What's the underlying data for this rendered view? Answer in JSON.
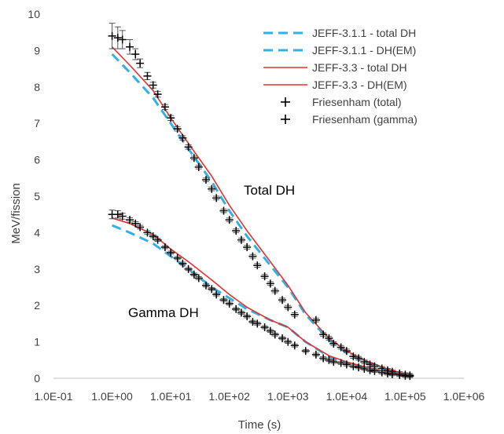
{
  "chart_data": {
    "type": "line",
    "xscale": "log",
    "xlabel": "Time (s)",
    "ylabel": "MeV/fission",
    "xlim": [
      0.1,
      1000000
    ],
    "ylim": [
      0,
      10
    ],
    "x_ticks": [
      "1.0E-01",
      "1.0E+00",
      "1.0E+01",
      "1.0E+02",
      "1.0E+03",
      "1.0E+04",
      "1.0E+05",
      "1.0E+06"
    ],
    "y_ticks": [
      "0",
      "1",
      "2",
      "3",
      "4",
      "5",
      "6",
      "7",
      "8",
      "9",
      "10"
    ],
    "grid": false,
    "legend_position": "top-right",
    "annotations": [
      "Total DH",
      "Gamma DH"
    ],
    "colors": {
      "jeff311": "#2EB2E8",
      "jeff33": "#E8302E",
      "markers": "#000000",
      "axis": "#bfbfbf",
      "text": "#404040"
    },
    "series": [
      {
        "name": "JEFF-3.1.1 - total DH",
        "style": "dashed",
        "x": [
          1,
          2,
          5,
          10,
          20,
          50,
          100,
          200,
          500,
          1000,
          2000,
          5000,
          10000,
          20000,
          50000,
          100000,
          130000
        ],
        "y": [
          8.9,
          8.4,
          7.7,
          7.0,
          6.3,
          5.4,
          4.6,
          3.9,
          3.1,
          2.5,
          1.75,
          1.05,
          0.7,
          0.45,
          0.22,
          0.1,
          0.08
        ]
      },
      {
        "name": "JEFF-3.1.1 - DH(EM)",
        "style": "dashed",
        "x": [
          1,
          2,
          5,
          10,
          20,
          50,
          100,
          200,
          500,
          1000,
          2000,
          5000,
          10000,
          20000,
          50000,
          100000,
          130000
        ],
        "y": [
          4.2,
          4.0,
          3.7,
          3.35,
          3.0,
          2.5,
          2.2,
          1.9,
          1.6,
          1.4,
          1.0,
          0.6,
          0.42,
          0.3,
          0.15,
          0.06,
          0.05
        ]
      },
      {
        "name": "JEFF-3.3 - total DH",
        "style": "solid",
        "x": [
          1,
          2,
          5,
          10,
          20,
          50,
          100,
          200,
          500,
          1000,
          2000,
          5000,
          10000,
          20000,
          50000,
          100000,
          130000
        ],
        "y": [
          9.1,
          8.6,
          7.9,
          7.15,
          6.45,
          5.55,
          4.75,
          4.05,
          3.2,
          2.55,
          1.8,
          1.1,
          0.75,
          0.5,
          0.25,
          0.12,
          0.1
        ]
      },
      {
        "name": "JEFF-3.3 - DH(EM)",
        "style": "solid",
        "x": [
          1,
          2,
          5,
          10,
          20,
          50,
          100,
          200,
          500,
          1000,
          2000,
          5000,
          10000,
          20000,
          50000,
          100000,
          130000
        ],
        "y": [
          4.4,
          4.25,
          3.95,
          3.55,
          3.2,
          2.7,
          2.3,
          1.95,
          1.6,
          1.4,
          1.0,
          0.62,
          0.45,
          0.32,
          0.17,
          0.08,
          0.06
        ]
      },
      {
        "name": "Friesenham (total)",
        "style": "marker",
        "x": [
          1,
          1.25,
          1.5,
          2,
          2.5,
          3,
          4,
          5,
          6,
          8,
          10,
          13,
          16,
          20,
          25,
          30,
          40,
          50,
          60,
          80,
          100,
          130,
          160,
          200,
          250,
          300,
          400,
          500,
          600,
          800,
          1000,
          1300,
          3000,
          4000,
          5000,
          6000,
          8000,
          10000,
          13000,
          16000,
          20000,
          25000,
          30000,
          40000,
          50000,
          60000,
          80000,
          100000,
          120000
        ],
        "y": [
          9.4,
          9.35,
          9.3,
          9.1,
          8.9,
          8.65,
          8.3,
          8.05,
          7.8,
          7.45,
          7.15,
          6.85,
          6.6,
          6.35,
          6.05,
          5.8,
          5.45,
          5.2,
          4.95,
          4.6,
          4.35,
          4.05,
          3.8,
          3.6,
          3.35,
          3.1,
          2.8,
          2.6,
          2.4,
          2.15,
          1.95,
          1.75,
          1.6,
          1.2,
          1.1,
          0.95,
          0.85,
          0.75,
          0.6,
          0.55,
          0.45,
          0.38,
          0.33,
          0.27,
          0.22,
          0.18,
          0.13,
          0.1,
          0.08
        ],
        "error": [
          0.35,
          0.3,
          0.25,
          0.2,
          0.15,
          0.12,
          0.1,
          0.08,
          0.08,
          0.07,
          0.07,
          0.06,
          0.06,
          0.06,
          0.05,
          0.05,
          0.05,
          0.05,
          0.05,
          0.05,
          0.05,
          0.05,
          0.05,
          0.05,
          0.05,
          0.05,
          0.05,
          0.05,
          0.05,
          0.05,
          0.05,
          0.05,
          0.05,
          0.05,
          0.05,
          0.05,
          0.05,
          0.05,
          0.05,
          0.05,
          0.05,
          0.05,
          0.05,
          0.05,
          0.05,
          0.05,
          0.05,
          0.05,
          0.05
        ]
      },
      {
        "name": "Friesenham (gamma)",
        "style": "marker",
        "x": [
          1,
          1.25,
          1.5,
          2,
          2.5,
          3,
          4,
          5,
          6,
          8,
          10,
          13,
          16,
          20,
          25,
          30,
          40,
          50,
          60,
          80,
          100,
          130,
          160,
          200,
          250,
          300,
          400,
          500,
          600,
          800,
          1000,
          1300,
          2000,
          3000,
          4000,
          5000,
          6000,
          8000,
          10000,
          13000,
          16000,
          20000,
          25000,
          30000,
          40000,
          50000,
          60000,
          80000,
          100000,
          120000
        ],
        "y": [
          4.5,
          4.5,
          4.45,
          4.35,
          4.25,
          4.15,
          4.0,
          3.9,
          3.8,
          3.6,
          3.45,
          3.3,
          3.15,
          3.0,
          2.85,
          2.75,
          2.55,
          2.45,
          2.3,
          2.15,
          2.05,
          1.9,
          1.8,
          1.7,
          1.55,
          1.5,
          1.4,
          1.3,
          1.2,
          1.1,
          1.0,
          0.9,
          0.75,
          0.65,
          0.55,
          0.5,
          0.45,
          0.42,
          0.38,
          0.33,
          0.3,
          0.26,
          0.22,
          0.2,
          0.16,
          0.13,
          0.11,
          0.09,
          0.07,
          0.06
        ],
        "error": [
          0.12,
          0.1,
          0.08,
          0.06,
          0.05,
          0.05,
          0.05,
          0.04,
          0.04,
          0.04,
          0.04,
          0.04,
          0.04,
          0.04,
          0.04,
          0.04,
          0.04,
          0.04,
          0.04,
          0.04,
          0.04,
          0.04,
          0.04,
          0.04,
          0.04,
          0.04,
          0.04,
          0.04,
          0.04,
          0.04,
          0.04,
          0.04,
          0.04,
          0.04,
          0.04,
          0.04,
          0.04,
          0.04,
          0.04,
          0.04,
          0.04,
          0.04,
          0.04,
          0.04,
          0.04,
          0.04,
          0.04,
          0.04,
          0.04,
          0.04
        ]
      }
    ]
  }
}
